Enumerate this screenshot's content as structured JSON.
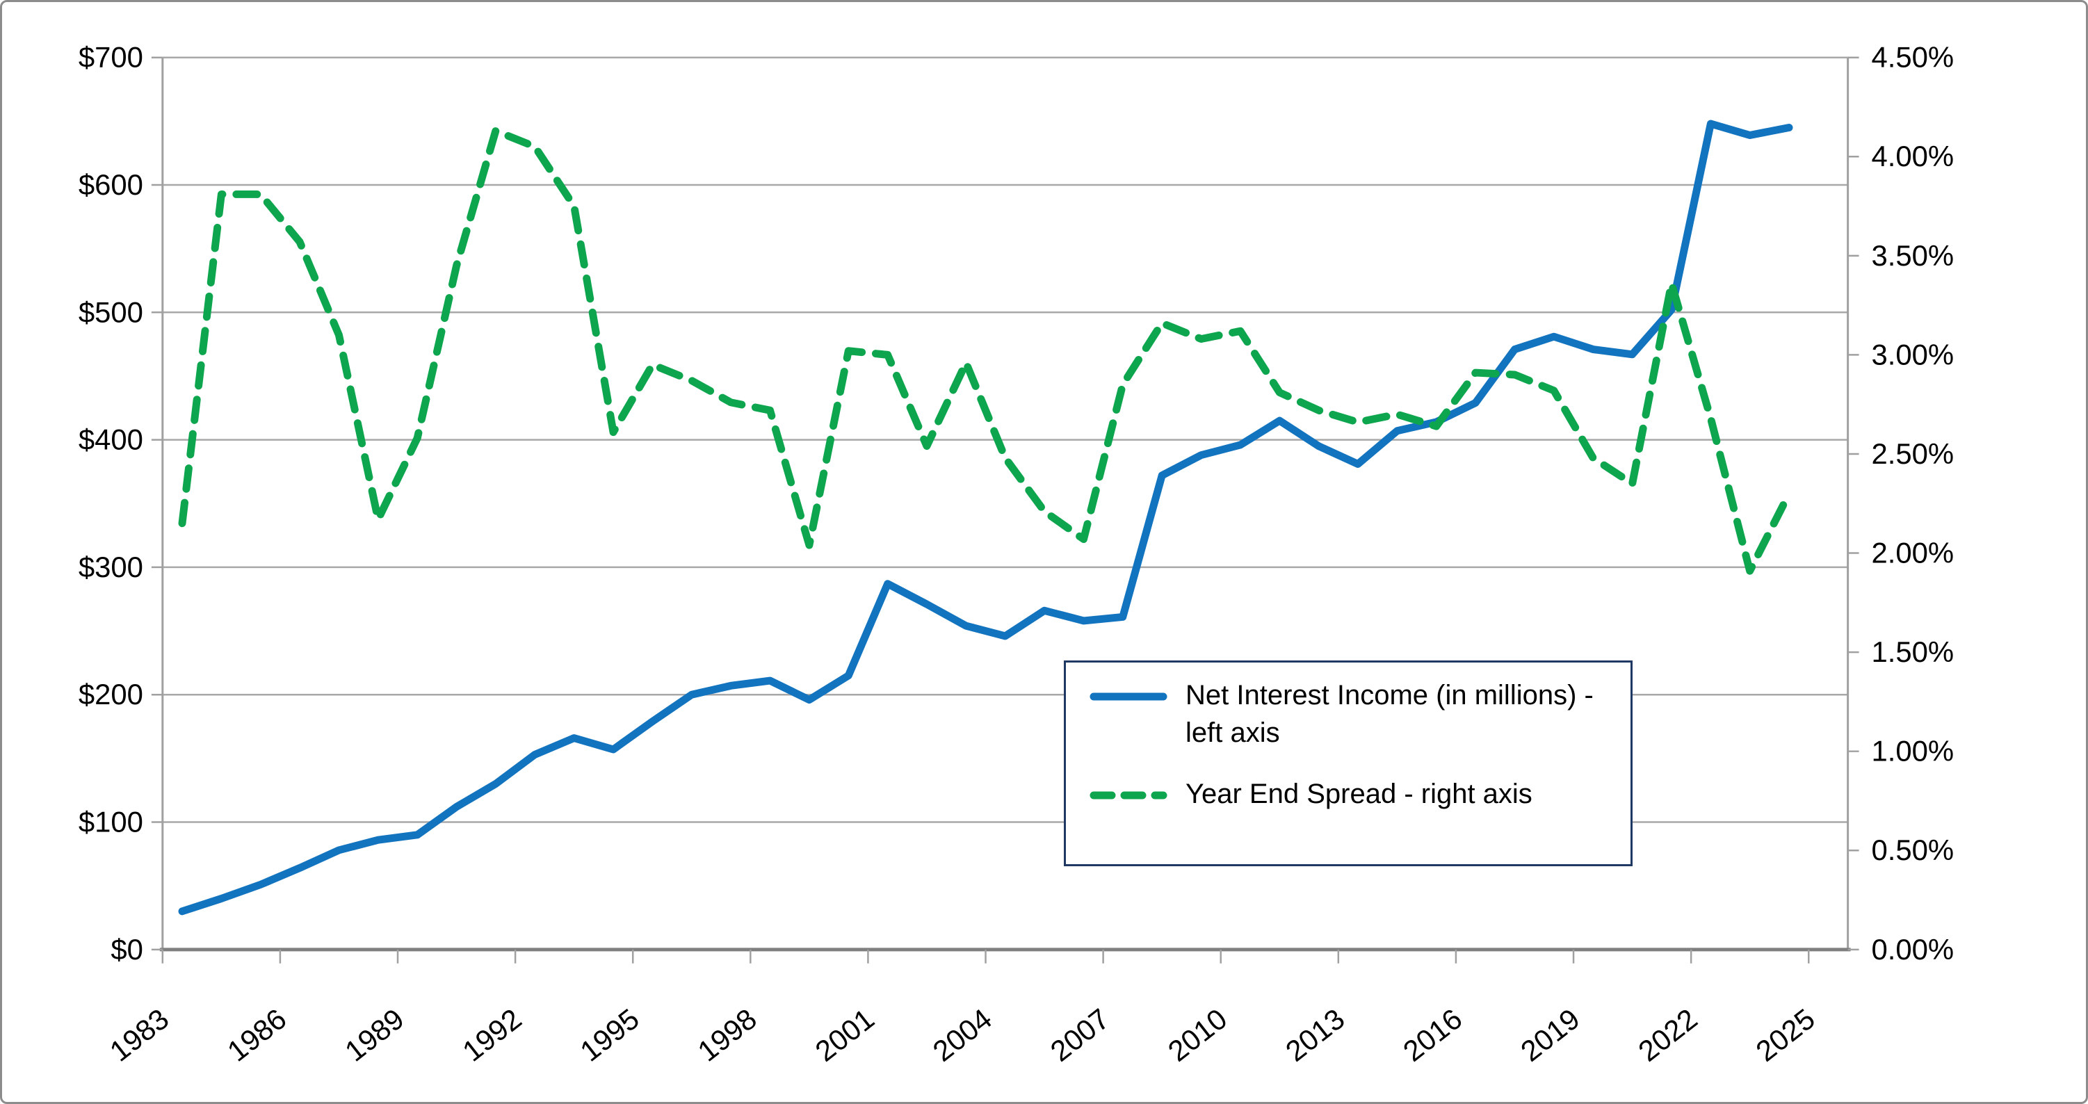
{
  "window": {
    "description": "Dual-axis line chart: net interest income vs year end spread, 1983-2024"
  },
  "colors": {
    "income_line": "#1273BF",
    "spread_line": "#0DA64E",
    "gridline": "#A8A8A8",
    "axis_line": "#A0A0A0",
    "bottom_axis_line": "#7F7F7F",
    "legend_border": "#1F3864",
    "frame_border": "#8C8C8C",
    "text": "#000000"
  },
  "legend": {
    "items": [
      {
        "series": "net-interest-income",
        "label": "Net Interest Income (in millions) - left axis",
        "style": "solid"
      },
      {
        "series": "year-end-spread",
        "label": "Year End Spread - right axis",
        "style": "dashed"
      }
    ]
  },
  "chart_data": {
    "type": "line",
    "title": "",
    "xlabel": "",
    "ylabel_left": "",
    "ylabel_right": "",
    "grid": true,
    "legend_position": "inside-lower-right",
    "x": [
      1983,
      1984,
      1985,
      1986,
      1987,
      1988,
      1989,
      1990,
      1991,
      1992,
      1993,
      1994,
      1995,
      1996,
      1997,
      1998,
      1999,
      2000,
      2001,
      2002,
      2003,
      2004,
      2005,
      2006,
      2007,
      2008,
      2009,
      2010,
      2011,
      2012,
      2013,
      2014,
      2015,
      2016,
      2017,
      2018,
      2019,
      2020,
      2021,
      2022,
      2023,
      2024
    ],
    "x_axis": {
      "range": [
        1983,
        2025
      ],
      "tick_step_years": 3,
      "tick_labels": [
        "1983",
        "1986",
        "1989",
        "1992",
        "1995",
        "1998",
        "2001",
        "2004",
        "2007",
        "2010",
        "2013",
        "2016",
        "2019",
        "2022",
        "2025"
      ],
      "label_rotation_deg": -38
    },
    "y_axis_left": {
      "min": 0,
      "max": 700,
      "step": 100,
      "tick_labels": [
        "$0",
        "$100",
        "$200",
        "$300",
        "$400",
        "$500",
        "$600",
        "$700"
      ]
    },
    "y_axis_right": {
      "min": 0,
      "max": 4.5,
      "step": 0.5,
      "tick_labels": [
        "0.00%",
        "0.50%",
        "1.00%",
        "1.50%",
        "2.00%",
        "2.50%",
        "3.00%",
        "3.50%",
        "4.00%",
        "4.50%"
      ]
    },
    "series": [
      {
        "name": "Net Interest Income (in millions) - left axis",
        "axis": "left",
        "style": "solid",
        "values": [
          30,
          40,
          51,
          64,
          78,
          86,
          90,
          112,
          130,
          153,
          166,
          157,
          179,
          200,
          207,
          211,
          196,
          215,
          287,
          271,
          254,
          246,
          266,
          258,
          261,
          372,
          388,
          396,
          415,
          395,
          381,
          407,
          414,
          429,
          471,
          481,
          471,
          467,
          502,
          648,
          639,
          645
        ]
      },
      {
        "name": "Year End Spread - right axis",
        "axis": "right",
        "style": "dashed",
        "values": [
          2.15,
          3.81,
          3.81,
          3.57,
          3.1,
          2.17,
          2.58,
          3.45,
          4.13,
          4.05,
          3.75,
          2.61,
          2.95,
          2.87,
          2.76,
          2.72,
          2.04,
          3.02,
          3.0,
          2.54,
          2.96,
          2.48,
          2.21,
          2.07,
          2.85,
          3.16,
          3.08,
          3.12,
          2.81,
          2.72,
          2.66,
          2.7,
          2.64,
          2.91,
          2.9,
          2.82,
          2.48,
          2.35,
          3.36,
          2.68,
          1.91,
          2.3
        ]
      }
    ]
  }
}
